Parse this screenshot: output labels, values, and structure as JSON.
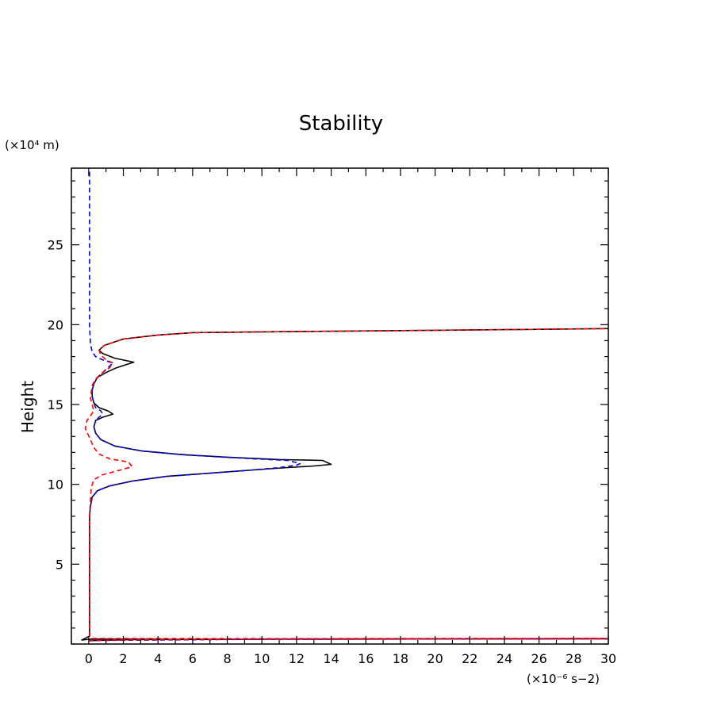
{
  "chart_data": {
    "type": "line",
    "title": "Stability",
    "ylabel": "Height",
    "xlabel": "",
    "y_unit_text": "(×10⁴ m)",
    "x_unit_text": "(×10⁻⁶ s−2)",
    "xlim": [
      -1,
      30
    ],
    "ylim": [
      0,
      29.8
    ],
    "xticks": [
      0,
      2,
      4,
      6,
      8,
      10,
      12,
      14,
      16,
      18,
      20,
      22,
      24,
      26,
      28,
      30
    ],
    "xticklabels": [
      "0",
      "2",
      "4",
      "6",
      "8",
      "10",
      "12",
      "14",
      "16",
      "18",
      "20",
      "22",
      "24",
      "26",
      "28",
      "30"
    ],
    "yticks": [
      5,
      10,
      15,
      20,
      25
    ],
    "yticklabels": [
      "5",
      "10",
      "15",
      "20",
      "25"
    ],
    "grid": false,
    "legend": "none",
    "series": [
      {
        "color": "#000000",
        "dash": "solid",
        "points": [
          [
            0.0,
            0.2
          ],
          [
            0.3,
            0.22
          ],
          [
            2.5,
            0.28
          ],
          [
            10,
            0.3
          ],
          [
            20,
            0.32
          ],
          [
            30,
            0.33
          ],
          [
            30,
            0.34
          ],
          [
            15,
            0.32
          ],
          [
            5,
            0.3
          ],
          [
            0.2,
            0.32
          ],
          [
            -0.4,
            0.25
          ],
          [
            0.05,
            0.5
          ],
          [
            0.05,
            8
          ],
          [
            0.1,
            8.6
          ],
          [
            0.2,
            9.2
          ],
          [
            0.5,
            9.6
          ],
          [
            1.2,
            9.9
          ],
          [
            2.5,
            10.2
          ],
          [
            4.5,
            10.5
          ],
          [
            7,
            10.7
          ],
          [
            9.5,
            10.9
          ],
          [
            11.5,
            11.05
          ],
          [
            13,
            11.15
          ],
          [
            14,
            11.25
          ],
          [
            13.5,
            11.5
          ],
          [
            11,
            11.55
          ],
          [
            8,
            11.7
          ],
          [
            5.5,
            11.85
          ],
          [
            3,
            12.1
          ],
          [
            1.5,
            12.4
          ],
          [
            0.7,
            12.8
          ],
          [
            0.4,
            13.2
          ],
          [
            0.3,
            13.6
          ],
          [
            0.4,
            14.0
          ],
          [
            0.8,
            14.2
          ],
          [
            1.4,
            14.4
          ],
          [
            1.1,
            14.6
          ],
          [
            0.6,
            14.8
          ],
          [
            0.3,
            15.1
          ],
          [
            0.2,
            15.5
          ],
          [
            0.2,
            15.9
          ],
          [
            0.3,
            16.3
          ],
          [
            0.5,
            16.7
          ],
          [
            1.0,
            17.0
          ],
          [
            1.6,
            17.3
          ],
          [
            2.6,
            17.65
          ],
          [
            1.5,
            17.9
          ],
          [
            0.8,
            18.2
          ],
          [
            0.6,
            18.4
          ],
          [
            0.9,
            18.7
          ],
          [
            2.0,
            19.1
          ],
          [
            4,
            19.35
          ],
          [
            6,
            19.5
          ],
          [
            10,
            19.55
          ],
          [
            15,
            19.6
          ],
          [
            20,
            19.65
          ],
          [
            25,
            19.7
          ],
          [
            30,
            19.75
          ]
        ]
      },
      {
        "color": "#0000ff",
        "dash": "dashed",
        "points": [
          [
            0.0,
            0.22
          ],
          [
            10,
            0.3
          ],
          [
            30,
            0.33
          ],
          [
            30,
            0.34
          ],
          [
            10,
            0.32
          ],
          [
            0.2,
            0.34
          ],
          [
            0.05,
            0.5
          ],
          [
            0.05,
            8
          ],
          [
            0.1,
            8.6
          ],
          [
            0.2,
            9.2
          ],
          [
            0.5,
            9.6
          ],
          [
            1.2,
            9.9
          ],
          [
            2.5,
            10.2
          ],
          [
            4.5,
            10.5
          ],
          [
            7,
            10.7
          ],
          [
            9.5,
            10.9
          ],
          [
            11,
            11.05
          ],
          [
            12,
            11.2
          ],
          [
            12.2,
            11.3
          ],
          [
            11.5,
            11.5
          ],
          [
            9.5,
            11.6
          ],
          [
            7,
            11.75
          ],
          [
            5,
            11.9
          ],
          [
            3,
            12.1
          ],
          [
            1.5,
            12.4
          ],
          [
            0.7,
            12.8
          ],
          [
            0.4,
            13.2
          ],
          [
            0.3,
            13.6
          ],
          [
            0.4,
            14.0
          ],
          [
            0.6,
            14.2
          ],
          [
            0.8,
            14.4
          ],
          [
            0.7,
            14.6
          ],
          [
            0.4,
            14.8
          ],
          [
            0.3,
            15.1
          ],
          [
            0.2,
            15.5
          ],
          [
            0.2,
            15.9
          ],
          [
            0.3,
            16.3
          ],
          [
            0.5,
            16.7
          ],
          [
            0.8,
            17.0
          ],
          [
            1.1,
            17.3
          ],
          [
            1.4,
            17.6
          ],
          [
            0.8,
            17.8
          ],
          [
            0.4,
            18.0
          ],
          [
            0.2,
            18.3
          ],
          [
            0.1,
            18.8
          ],
          [
            0.05,
            20
          ],
          [
            0.05,
            29.8
          ]
        ]
      },
      {
        "color": "#ff0000",
        "dash": "dashed",
        "points": [
          [
            0.0,
            0.24
          ],
          [
            10,
            0.32
          ],
          [
            30,
            0.35
          ],
          [
            30,
            0.36
          ],
          [
            10,
            0.34
          ],
          [
            0.2,
            0.35
          ],
          [
            0.05,
            0.5
          ],
          [
            0.05,
            8
          ],
          [
            0.1,
            9.0
          ],
          [
            0.15,
            9.8
          ],
          [
            0.3,
            10.3
          ],
          [
            0.8,
            10.6
          ],
          [
            1.5,
            10.8
          ],
          [
            2.5,
            11.1
          ],
          [
            2.3,
            11.4
          ],
          [
            1.2,
            11.6
          ],
          [
            0.6,
            11.9
          ],
          [
            0.3,
            12.3
          ],
          [
            0.1,
            12.8
          ],
          [
            -0.2,
            13.5
          ],
          [
            -0.1,
            14.0
          ],
          [
            0.1,
            14.3
          ],
          [
            0.3,
            14.6
          ],
          [
            0.2,
            15.0
          ],
          [
            0.1,
            15.4
          ],
          [
            0.15,
            15.8
          ],
          [
            0.2,
            16.2
          ],
          [
            0.4,
            16.6
          ],
          [
            0.8,
            17.0
          ],
          [
            1.2,
            17.3
          ],
          [
            1.4,
            17.6
          ],
          [
            1.0,
            17.8
          ],
          [
            0.7,
            18.1
          ],
          [
            0.6,
            18.4
          ],
          [
            0.9,
            18.7
          ],
          [
            2.0,
            19.1
          ],
          [
            4,
            19.35
          ],
          [
            6,
            19.5
          ],
          [
            10,
            19.55
          ],
          [
            15,
            19.6
          ],
          [
            20,
            19.65
          ],
          [
            25,
            19.7
          ],
          [
            30,
            19.75
          ]
        ]
      }
    ]
  }
}
